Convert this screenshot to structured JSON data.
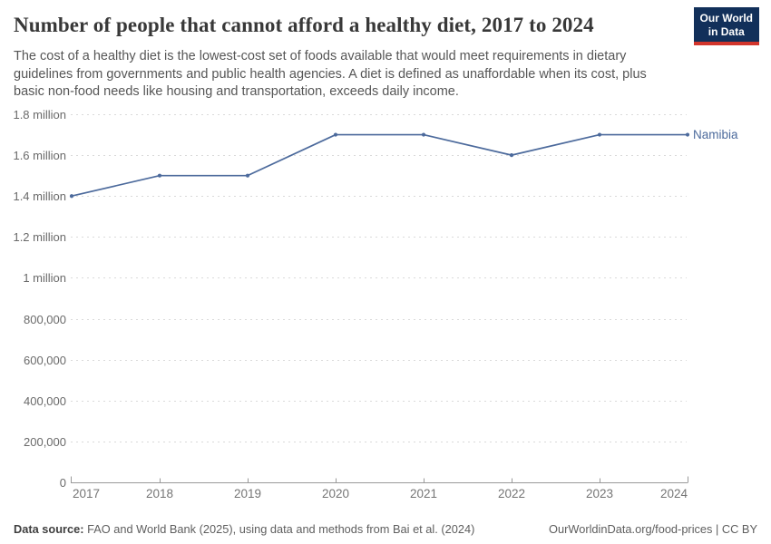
{
  "header": {
    "title": "Number of people that cannot afford a healthy diet, 2017 to 2024",
    "subtitle_lines": [
      "The cost of a healthy diet is the lowest-cost set of foods available that would meet requirements in dietary",
      "guidelines from governments and public health agencies. A diet is defined as unaffordable when its cost, plus",
      "basic non-food needs like housing and transportation, exceeds daily income."
    ],
    "logo": {
      "line1": "Our World",
      "line2": "in Data"
    }
  },
  "chart_data": {
    "type": "line",
    "title": "Number of people that cannot afford a healthy diet, 2017 to 2024",
    "x": [
      2017,
      2018,
      2019,
      2020,
      2021,
      2022,
      2023,
      2024
    ],
    "series": [
      {
        "name": "Namibia",
        "color": "#4c6a9c",
        "values": [
          1400000,
          1500000,
          1500000,
          1700000,
          1700000,
          1600000,
          1700000,
          1700000
        ]
      }
    ],
    "xlabel": "",
    "ylabel": "",
    "ylim": [
      0,
      1800000
    ],
    "ytick_interval": 200000,
    "ytick_labels": [
      "0",
      "200,000",
      "400,000",
      "600,000",
      "800,000",
      "1 million",
      "1.2 million",
      "1.4 million",
      "1.6 million",
      "1.8 million"
    ],
    "grid": "horizontal-dashed",
    "legend_position": "line-end-label",
    "markers": true
  },
  "footer": {
    "source_label": "Data source:",
    "source_text": " FAO and World Bank (2025), using data and methods from Bai et al. (2024)",
    "url": "OurWorldinData.org/food-prices",
    "separator": " | ",
    "license": "CC BY"
  },
  "colors": {
    "line": "#4c6a9c",
    "grid": "#dadada",
    "axis": "#999999",
    "y_tick_label": "#6a6a6a",
    "x_tick_label": "#757575",
    "title": "#383838",
    "subtitle": "#565656",
    "footer": "#5e5e5e",
    "logo_bg": "#12305a",
    "logo_accent": "#d2352c"
  }
}
